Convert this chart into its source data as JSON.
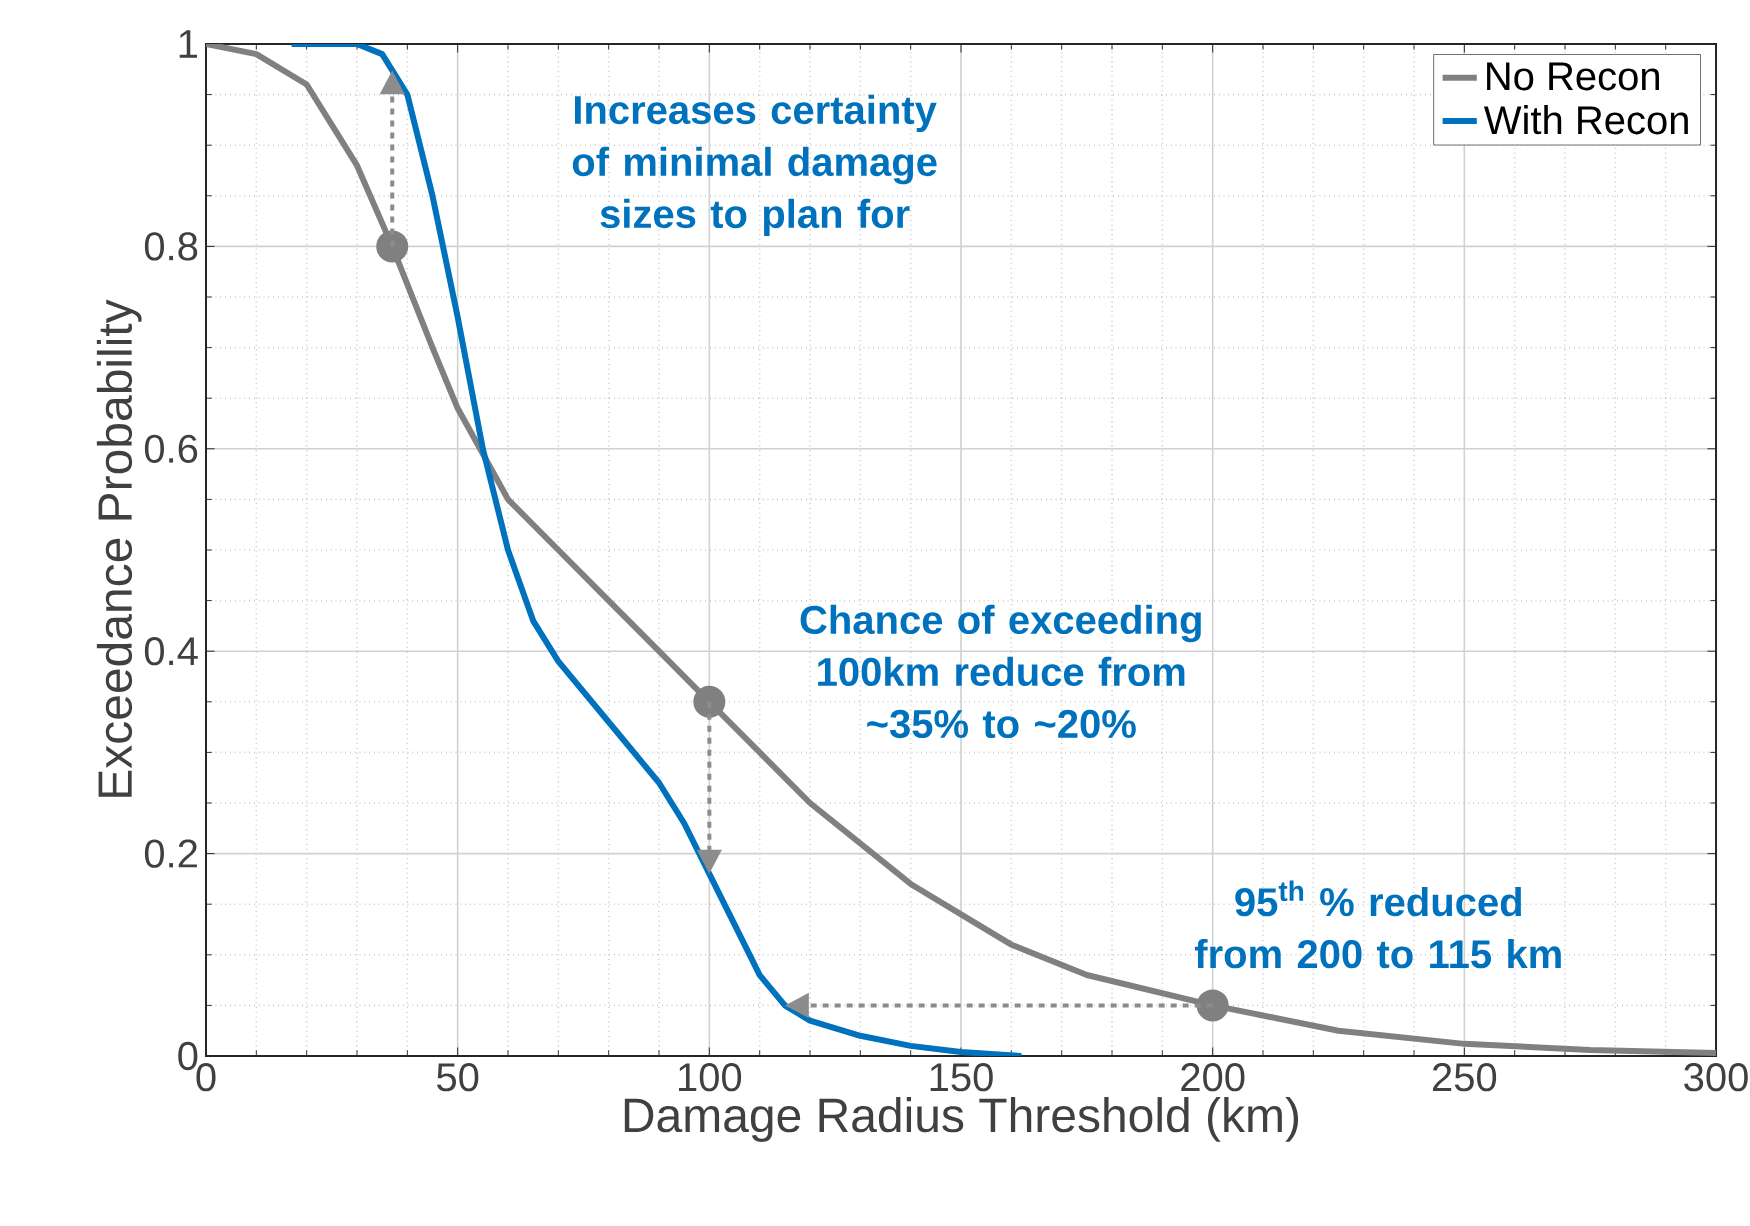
{
  "chart_data": {
    "type": "line",
    "xlabel": "Damage Radius Threshold (km)",
    "ylabel": "Exceedance Probability",
    "xlim": [
      0,
      300
    ],
    "xticks": [
      0,
      50,
      100,
      150,
      200,
      250,
      300
    ],
    "ylim": [
      0,
      1
    ],
    "yticks": [
      0,
      0.2,
      0.4,
      0.6,
      0.8,
      1
    ],
    "grid": true,
    "legend": "top right",
    "series": [
      {
        "name": "No Recon",
        "color": "#808080",
        "x": [
          0,
          10,
          20,
          30,
          37,
          45,
          50,
          60,
          70,
          80,
          90,
          100,
          110,
          120,
          130,
          140,
          150,
          160,
          175,
          200,
          225,
          250,
          275,
          300
        ],
        "values": [
          1.0,
          0.99,
          0.96,
          0.88,
          0.8,
          0.7,
          0.64,
          0.55,
          0.5,
          0.45,
          0.4,
          0.35,
          0.3,
          0.25,
          0.21,
          0.17,
          0.14,
          0.11,
          0.08,
          0.05,
          0.025,
          0.012,
          0.006,
          0.003
        ]
      },
      {
        "name": "With Recon",
        "color": "#0072bd",
        "x": [
          17,
          30,
          35,
          40,
          45,
          50,
          55,
          60,
          65,
          70,
          80,
          90,
          95,
          100,
          105,
          110,
          115,
          120,
          130,
          140,
          150,
          162
        ],
        "values": [
          1.0,
          1.0,
          0.99,
          0.95,
          0.85,
          0.73,
          0.6,
          0.5,
          0.43,
          0.39,
          0.33,
          0.27,
          0.23,
          0.18,
          0.13,
          0.08,
          0.05,
          0.035,
          0.02,
          0.01,
          0.004,
          0.0
        ]
      },
      {
        "type": "scatter",
        "color": "#808080",
        "marker": "circle",
        "x": [
          37,
          100,
          200
        ],
        "values": [
          0.8,
          0.35,
          0.05
        ]
      }
    ],
    "annotations": [
      "Increases certainty of minimal damage sizes to plan for",
      {
        "text": "Chance of exceeding 100km reduce from ~35% to ~20%",
        "x": 100,
        "y": 0.35
      },
      {
        "text": "95$^{th}$ % reduced from 200 to 115 km",
        "x": 200,
        "y": 0.05
      }
    ]
  }
}
